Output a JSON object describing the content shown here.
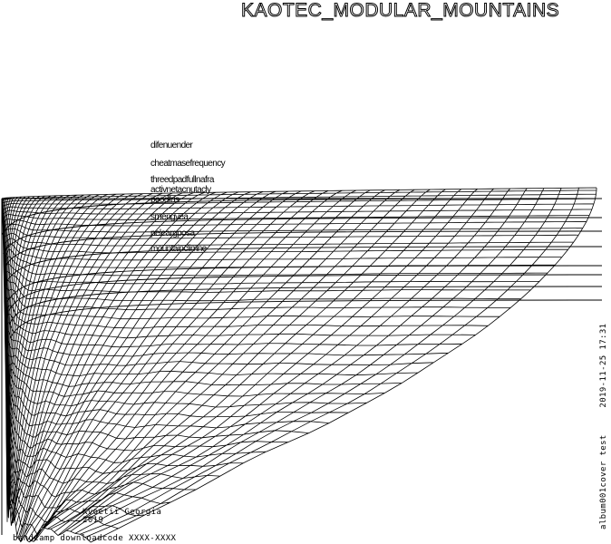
{
  "title": "KAOTEC_MODULAR_MOUNTAINS",
  "tracks": [
    "difenuender",
    "cheatmasefrequency",
    "threedpadfullnafra",
    "activnetacnutacly",
    "poodfus",
    "smengvea",
    "peleargposa",
    "mountainclimne"
  ],
  "footer": {
    "artist": "Kvoetii Georgia",
    "year": "2019",
    "download_code": "bandcamp downloadcode XXXX-XXXX"
  },
  "side_label": {
    "file": "album001cover test",
    "timestamp": "2019-11-25 17:31"
  }
}
